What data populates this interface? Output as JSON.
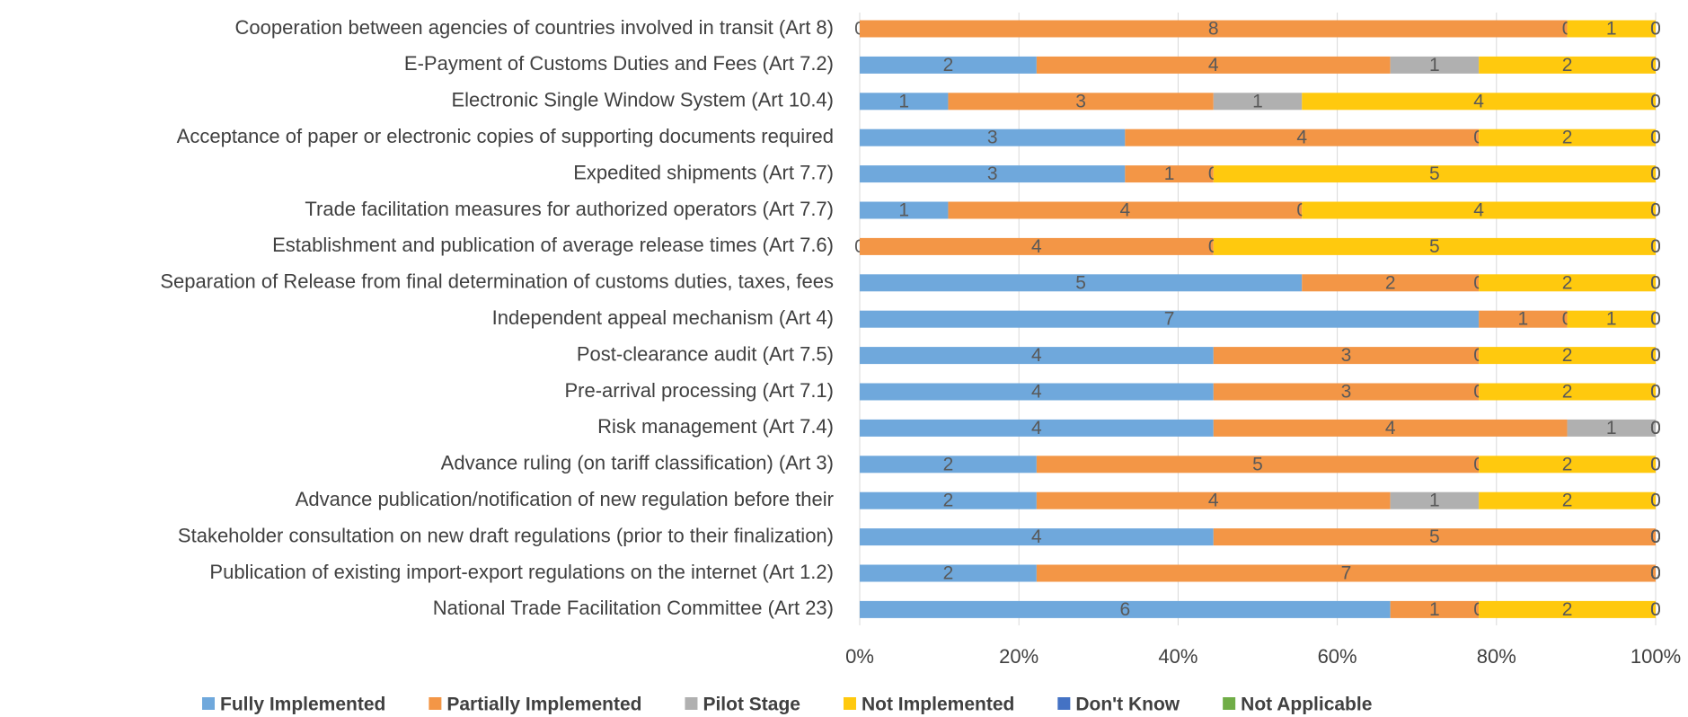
{
  "chart_data": {
    "type": "bar",
    "orientation": "horizontal",
    "stacked": "percent",
    "categories": [
      "Cooperation between agencies of countries involved in transit (Art 8)",
      "E-Payment of Customs Duties and Fees (Art 7.2)",
      "Electronic Single Window System  (Art 10.4)",
      "Acceptance of paper or electronic copies of supporting documents required",
      "Expedited shipments (Art 7.7)",
      "Trade facilitation measures for authorized operators (Art 7.7)",
      "Establishment and publication of average release times (Art 7.6)",
      "Separation of Release from final determination of customs duties, taxes, fees",
      "Independent appeal mechanism (Art 4)",
      "Post-clearance audit (Art 7.5)",
      "Pre-arrival processing (Art 7.1)",
      "Risk management (Art 7.4)",
      "Advance ruling (on tariff classification) (Art 3)",
      "Advance publication/notification of new regulation before their",
      "Stakeholder consultation on new draft regulations (prior to their finalization)",
      "Publication of existing import-export regulations on the internet (Art 1.2)",
      "National Trade Facilitation Committee (Art 23)"
    ],
    "series": [
      {
        "name": "Fully Implemented",
        "color": "#6FA8DC",
        "values": [
          0,
          2,
          1,
          3,
          3,
          1,
          0,
          5,
          7,
          4,
          4,
          4,
          2,
          2,
          4,
          2,
          6
        ]
      },
      {
        "name": "Partially Implemented",
        "color": "#F39646",
        "values": [
          8,
          4,
          3,
          4,
          1,
          4,
          4,
          2,
          1,
          3,
          3,
          4,
          5,
          4,
          5,
          7,
          1
        ]
      },
      {
        "name": "Pilot Stage",
        "color": "#B0B0B0",
        "values": [
          0,
          1,
          1,
          0,
          0,
          0,
          0,
          0,
          0,
          0,
          0,
          1,
          0,
          1,
          0,
          0,
          0
        ]
      },
      {
        "name": "Not Implemented",
        "color": "#FFC90E",
        "values": [
          1,
          2,
          4,
          2,
          5,
          4,
          5,
          2,
          1,
          2,
          2,
          0,
          2,
          2,
          0,
          0,
          2
        ]
      },
      {
        "name": "Don't Know",
        "color": "#4472C4",
        "values": [
          0,
          0,
          0,
          0,
          0,
          0,
          0,
          0,
          0,
          0,
          0,
          0,
          0,
          0,
          0,
          0,
          0
        ]
      },
      {
        "name": "Not Applicable",
        "color": "#70AD47",
        "values": [
          0,
          0,
          0,
          0,
          0,
          0,
          0,
          0,
          0,
          0,
          0,
          0,
          0,
          0,
          0,
          0,
          0
        ]
      }
    ],
    "xlim": [
      0,
      100
    ],
    "xticks": [
      {
        "value": 0,
        "label": "0%"
      },
      {
        "value": 20,
        "label": "20%"
      },
      {
        "value": 40,
        "label": "40%"
      },
      {
        "value": 60,
        "label": "60%"
      },
      {
        "value": 80,
        "label": "80%"
      },
      {
        "value": 100,
        "label": "100%"
      }
    ],
    "grid": true,
    "legend": "bottom"
  }
}
